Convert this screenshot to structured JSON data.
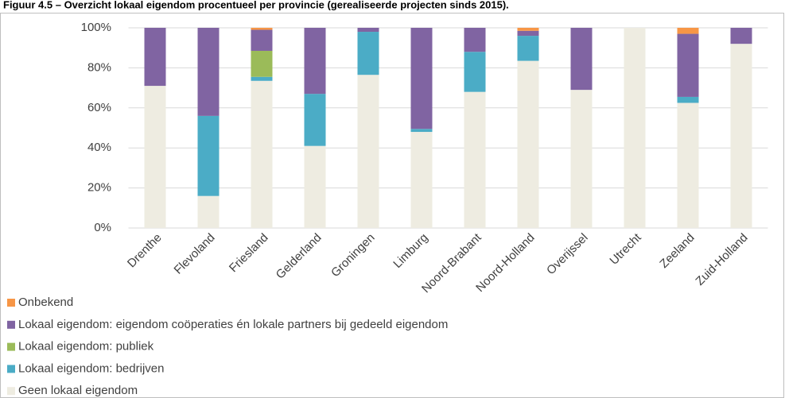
{
  "chart_data": {
    "type": "stacked-bar",
    "title": "Figuur 4.5 – Overzicht lokaal eigendom procentueel per provincie (gerealiseerde projecten sinds 2015).",
    "categories": [
      "Drenthe",
      "Flevoland",
      "Friesland",
      "Gelderland",
      "Groningen",
      "Limburg",
      "Noord-Brabant",
      "Noord-Holland",
      "Overijssel",
      "Utrecht",
      "Zeeland",
      "Zuid-Holland"
    ],
    "series": [
      {
        "name": "Geen lokaal eigendom",
        "color": "#eeece1",
        "values": [
          71,
          16,
          73.5,
          41,
          76.5,
          48,
          68,
          83.5,
          69,
          100,
          62.5,
          92
        ]
      },
      {
        "name": "Lokaal eigendom: bedrijven",
        "color": "#4bacc6",
        "values": [
          0,
          40,
          2,
          26,
          21.5,
          1.5,
          20,
          12.5,
          0,
          0,
          3,
          0
        ]
      },
      {
        "name": "Lokaal eigendom: publiek",
        "color": "#9bbb59",
        "values": [
          0,
          0,
          13,
          0,
          0,
          0,
          0,
          0,
          0,
          0,
          0,
          0
        ]
      },
      {
        "name": "Lokaal eigendom: eigendom coöperaties én lokale partners bij gedeeld eigendom",
        "color": "#8064a2",
        "values": [
          29,
          44,
          10.5,
          33,
          2,
          50.5,
          12,
          2.5,
          31,
          0,
          31.5,
          8
        ]
      },
      {
        "name": "Onbekend",
        "color": "#f79646",
        "values": [
          0,
          0,
          1,
          0,
          0,
          0,
          0,
          1.5,
          0,
          0,
          3,
          0
        ]
      }
    ],
    "ylim": [
      0,
      100
    ],
    "yticks": [
      {
        "value": 0,
        "label": "0%"
      },
      {
        "value": 20,
        "label": "20%"
      },
      {
        "value": 40,
        "label": "40%"
      },
      {
        "value": 60,
        "label": "60%"
      },
      {
        "value": 80,
        "label": "80%"
      },
      {
        "value": 100,
        "label": "100%"
      }
    ],
    "grid": true
  }
}
